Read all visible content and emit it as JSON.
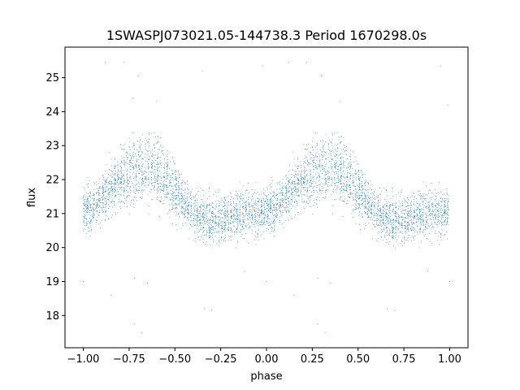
{
  "chart_data": {
    "type": "scatter",
    "title": "1SWASPJ073021.05-144738.3 Period 1670298.0s",
    "xlabel": "phase",
    "ylabel": "flux",
    "xlim": [
      -1.1,
      1.1
    ],
    "ylim": [
      17.05,
      25.9
    ],
    "xticks": [
      -1.0,
      -0.75,
      -0.5,
      -0.25,
      0.0,
      0.25,
      0.5,
      0.75,
      1.0
    ],
    "xtick_labels": [
      "−1.00",
      "−0.75",
      "−0.50",
      "−0.25",
      "0.00",
      "0.25",
      "0.50",
      "0.75",
      "1.00"
    ],
    "yticks": [
      18,
      19,
      20,
      21,
      22,
      23,
      24,
      25
    ],
    "ytick_labels": [
      "18",
      "19",
      "20",
      "21",
      "22",
      "23",
      "24",
      "25"
    ],
    "grid": false,
    "legend": "none",
    "marker_color": "#1f77b4",
    "note_series": "phase-folded light curve; the pattern repeats with period 1 in phase",
    "profile": {
      "phase": [
        0.0,
        0.05,
        0.1,
        0.15,
        0.2,
        0.25,
        0.3,
        0.35,
        0.4,
        0.45,
        0.5,
        0.55,
        0.6,
        0.65,
        0.7,
        0.75,
        0.8,
        0.85,
        0.9,
        0.95,
        1.0
      ],
      "center": [
        21.1,
        21.2,
        21.5,
        21.8,
        22.0,
        22.2,
        22.3,
        22.3,
        22.2,
        22.0,
        21.7,
        21.3,
        21.0,
        20.9,
        20.8,
        20.8,
        20.9,
        20.9,
        21.0,
        21.0,
        21.1
      ],
      "spread": [
        0.6,
        0.6,
        0.6,
        0.7,
        0.8,
        0.9,
        0.9,
        0.9,
        0.9,
        0.8,
        0.7,
        0.6,
        0.6,
        0.6,
        0.6,
        0.6,
        0.6,
        0.6,
        0.6,
        0.6,
        0.6
      ]
    },
    "outliers": [
      {
        "x": -0.88,
        "y": 25.45
      },
      {
        "x": -0.78,
        "y": 25.45
      },
      {
        "x": -0.7,
        "y": 25.05
      },
      {
        "x": -0.73,
        "y": 24.4
      },
      {
        "x": -0.6,
        "y": 24.3
      },
      {
        "x": -0.35,
        "y": 25.2
      },
      {
        "x": -0.02,
        "y": 25.35
      },
      {
        "x": 0.12,
        "y": 25.45
      },
      {
        "x": 0.22,
        "y": 25.45
      },
      {
        "x": 0.3,
        "y": 25.05
      },
      {
        "x": 0.4,
        "y": 24.3
      },
      {
        "x": 0.95,
        "y": 25.35
      },
      {
        "x": 0.99,
        "y": 24.2
      },
      {
        "x": -1.0,
        "y": 19.0
      },
      {
        "x": -0.72,
        "y": 19.1
      },
      {
        "x": -0.65,
        "y": 18.95
      },
      {
        "x": -0.34,
        "y": 18.2
      },
      {
        "x": -0.3,
        "y": 18.15
      },
      {
        "x": -0.72,
        "y": 17.75
      },
      {
        "x": -0.68,
        "y": 17.5
      },
      {
        "x": 0.0,
        "y": 19.0
      },
      {
        "x": 0.28,
        "y": 19.1
      },
      {
        "x": 0.35,
        "y": 18.95
      },
      {
        "x": 0.66,
        "y": 18.2
      },
      {
        "x": 0.7,
        "y": 18.15
      },
      {
        "x": 0.28,
        "y": 17.75
      },
      {
        "x": 0.32,
        "y": 17.5
      },
      {
        "x": 1.0,
        "y": 19.0
      },
      {
        "x": -0.85,
        "y": 18.6
      },
      {
        "x": 0.15,
        "y": 18.6
      },
      {
        "x": 0.88,
        "y": 19.3
      },
      {
        "x": -0.12,
        "y": 19.3
      }
    ]
  }
}
